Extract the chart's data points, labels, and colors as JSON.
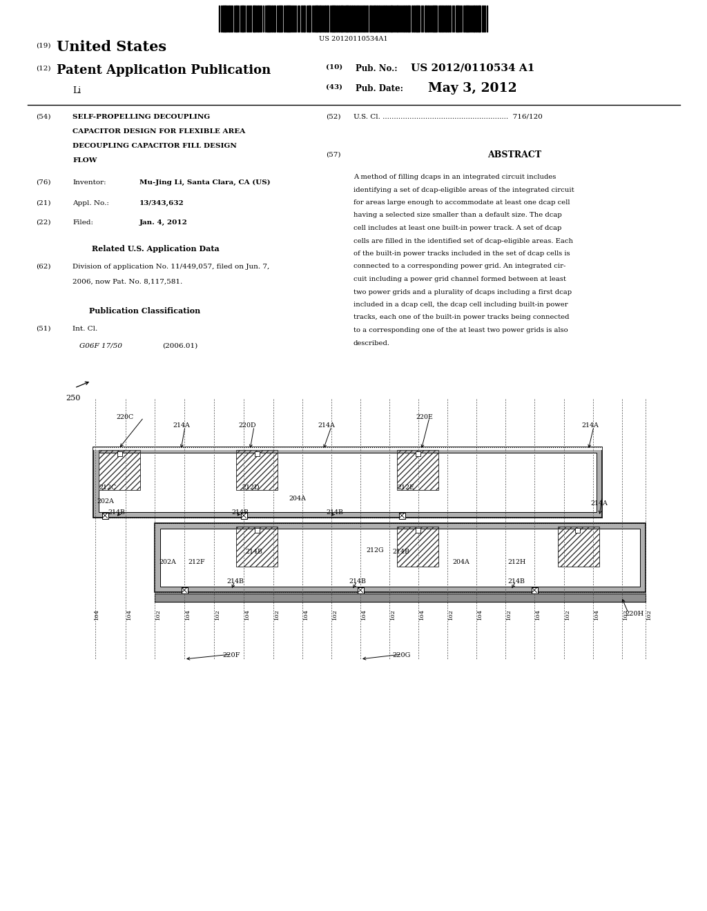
{
  "background_color": "#ffffff",
  "page_width": 10.24,
  "page_height": 13.2,
  "barcode_text": "US 20120110534A1",
  "patent_number_label": "(19)",
  "patent_title_us": "United States",
  "patent_number_label2": "(12)",
  "patent_app_pub": "Patent Application Publication",
  "pub_no_label": "(10) Pub. No.:",
  "pub_no_value": "US 2012/0110534 A1",
  "pub_date_label": "(43) Pub. Date:",
  "pub_date_value": "May 3, 2012",
  "author_last": "Li",
  "field54_label": "(54)",
  "field52_label": "(52)",
  "field52_text": "U.S. Cl. ........................................................  716/120",
  "field57_label": "(57)",
  "field57_abstract": "ABSTRACT",
  "abstract_lines": [
    "A method of filling dcaps in an integrated circuit includes",
    "identifying a set of dcap-eligible areas of the integrated circuit",
    "for areas large enough to accommodate at least one dcap cell",
    "having a selected size smaller than a default size. The dcap",
    "cell includes at least one built-in power track. A set of dcap",
    "cells are filled in the identified set of dcap-eligible areas. Each",
    "of the built-in power tracks included in the set of dcap cells is",
    "connected to a corresponding power grid. An integrated cir-",
    "cuit including a power grid channel formed between at least",
    "two power grids and a plurality of dcaps including a first dcap",
    "included in a dcap cell, the dcap cell including built-in power",
    "tracks, each one of the built-in power tracks being connected",
    "to a corresponding one of the at least two power grids is also",
    "described."
  ],
  "field76_name": "Mu-Jing Li, Santa Clara, CA (US)",
  "field21_value": "13/343,632",
  "field22_value": "Jan. 4, 2012",
  "related_app_title": "Related U.S. Application Data",
  "field62_line1": "Division of application No. 11/449,057, filed on Jun. 7,",
  "field62_line2": "2006, now Pat. No. 8,117,581.",
  "pub_class_title": "Publication Classification",
  "field51_class": "G06F 17/50",
  "field51_year": "(2006.01)",
  "diagram_label": "250"
}
